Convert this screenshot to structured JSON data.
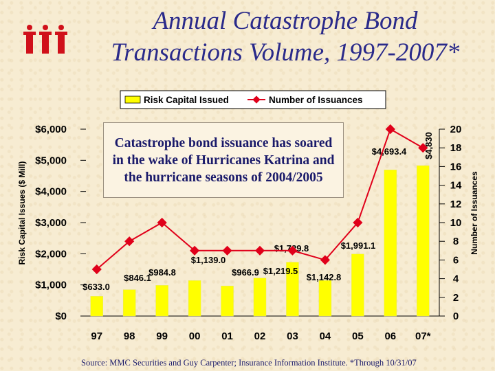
{
  "title_line1": "Annual Catastrophe Bond",
  "title_line2": "Transactions Volume, 1997-2007*",
  "annotation": "Catastrophe bond issuance has soared in the wake of Hurricanes Katrina and the hurricane seasons of 2004/2005",
  "source": "Source: MMC Securities and Guy Carpenter; Insurance Information Institute.   *Through 10/31/07",
  "colors": {
    "bar": "#ffff00",
    "line": "#e0001a",
    "title": "#2a2a8a",
    "logo": "#d0101a"
  },
  "chart_data": {
    "type": "bar",
    "categories": [
      "97",
      "98",
      "99",
      "00",
      "01",
      "02",
      "03",
      "04",
      "05",
      "06",
      "07*"
    ],
    "series": [
      {
        "name": "Risk Capital Issued",
        "type": "bar",
        "axis": "left",
        "values": [
          633.0,
          846.1,
          984.8,
          1139.0,
          966.9,
          1219.5,
          1729.8,
          1142.8,
          1991.1,
          4693.4,
          4830
        ],
        "labels": [
          "$633.0",
          "$846.1",
          "$984.8",
          "$1,139.0",
          "$966.9",
          "$1,219.5",
          "$1,729.8",
          "$1,142.8",
          "$1,991.1",
          "$4,693.4",
          "$4,830"
        ]
      },
      {
        "name": "Number of Issuances",
        "type": "line",
        "axis": "right",
        "values": [
          5,
          8,
          10,
          7,
          7,
          7,
          7,
          6,
          10,
          20,
          18
        ]
      }
    ],
    "ylabel": "Risk Capital Issues ($ Mill)",
    "y2label": "Number of Issuances",
    "ylim": [
      0,
      6000
    ],
    "y2lim": [
      0,
      20
    ],
    "yticks": [
      "$0",
      "$1,000",
      "$2,000",
      "$3,000",
      "$4,000",
      "$5,000",
      "$6,000"
    ],
    "y2ticks": [
      "0",
      "2",
      "4",
      "6",
      "8",
      "10",
      "12",
      "14",
      "16",
      "18",
      "20"
    ],
    "legend": "top",
    "grid": false
  }
}
